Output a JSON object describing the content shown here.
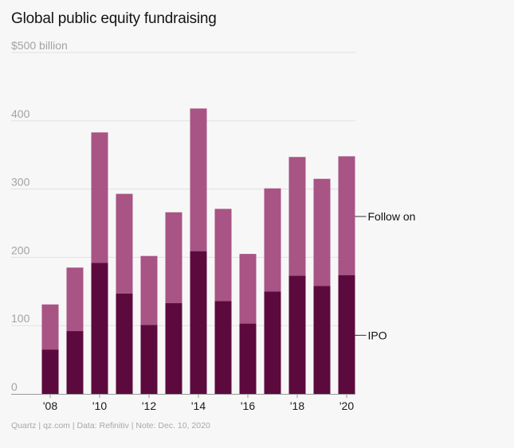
{
  "title": "Global public equity fundraising",
  "footer": "Quartz | qz.com | Data: Refinitiv | Note: Dec. 10, 2020",
  "colors": {
    "ipo": "#5c0a3e",
    "follow_on": "#a85484",
    "grid": "#e2e2e2",
    "axis": "#999999",
    "background": "#f7f7f7"
  },
  "chart_data": {
    "type": "bar",
    "stacked": true,
    "title": "Global public equity fundraising",
    "ylim": [
      0,
      500
    ],
    "yticks": [
      0,
      100,
      200,
      300,
      400,
      500
    ],
    "ytick_labels": [
      "0",
      "100",
      "200",
      "300",
      "400",
      "$500 billion"
    ],
    "grid": true,
    "x": [
      2008,
      2009,
      2010,
      2011,
      2012,
      2013,
      2014,
      2015,
      2016,
      2017,
      2018,
      2019,
      2020
    ],
    "xtick_labels": [
      "'08",
      "",
      "'10",
      "",
      "'12",
      "",
      "'14",
      "",
      "'16",
      "",
      "'18",
      "",
      "'20"
    ],
    "series": [
      {
        "name": "IPO",
        "values": [
          65,
          92,
          192,
          147,
          101,
          133,
          209,
          136,
          103,
          150,
          173,
          158,
          174
        ]
      },
      {
        "name": "Follow on",
        "values": [
          66,
          93,
          191,
          146,
          101,
          133,
          209,
          135,
          102,
          151,
          174,
          157,
          174
        ]
      }
    ],
    "legend_placement": "right, inline labels"
  }
}
